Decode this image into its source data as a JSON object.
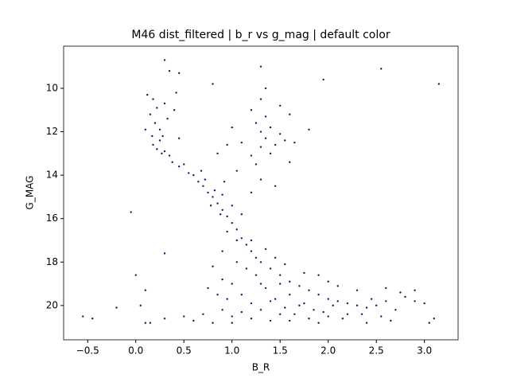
{
  "chart_data": {
    "type": "scatter",
    "title": "M46 dist_filtered | b_r vs g_mag | default color",
    "x_label": "B_R",
    "y_label": "G_MAG",
    "color": "#191970",
    "grid": false,
    "xlim": [
      -0.75,
      3.35
    ],
    "ylim": [
      21.58,
      8.06
    ],
    "xticks": [
      {
        "value": -0.5,
        "label": "−0.5"
      },
      {
        "value": 0,
        "label": "0.0"
      },
      0.5,
      {
        "value": 1,
        "label": "1.0"
      },
      1.5,
      {
        "value": 2,
        "label": "2.0"
      },
      2.5,
      {
        "value": 3,
        "label": "3.0"
      }
    ],
    "yticks": [
      10,
      12,
      14,
      16,
      18,
      20
    ],
    "x": [
      0.12,
      0.18,
      0.22,
      0.15,
      0.2,
      0.1,
      0.17,
      0.25,
      0.22,
      0.3,
      0.35,
      0.28,
      0.33,
      0.4,
      0.45,
      0.38,
      0.45,
      0.5,
      0.55,
      0.6,
      0.25,
      0.3,
      0.42,
      0.18,
      0.27,
      0.65,
      0.7,
      0.75,
      0.8,
      0.72,
      0.85,
      0.9,
      0.82,
      0.95,
      1.0,
      0.9,
      1.05,
      1.1,
      0.88,
      1.0,
      1.15,
      1.2,
      1.05,
      1.25,
      0.95,
      1.1,
      0.78,
      0.68,
      1.3,
      1.2,
      0.92,
      1.3,
      1.4,
      1.5,
      1.6,
      1.7,
      1.8,
      1.9,
      2.0,
      2.1,
      2.2,
      2.3,
      2.4,
      2.5,
      2.6,
      2.7,
      2.8,
      2.2,
      2.0,
      1.8,
      1.6,
      1.4,
      1.2,
      1.0,
      0.9,
      0.85,
      0.9,
      1.0,
      1.1,
      1.2,
      1.3,
      1.35,
      1.45,
      1.55,
      1.65,
      1.75,
      1.85,
      1.95,
      2.05,
      2.15,
      2.35,
      2.45,
      2.55,
      1.25,
      1.15,
      1.05,
      1.5,
      1.6,
      1.4,
      1.3,
      1.7,
      1.9,
      1.5,
      1.1,
      0.95,
      0.7,
      0.6,
      0.5,
      0.8,
      2.3,
      2.6,
      2.75,
      2.9,
      2.1,
      1.9,
      1.75,
      2.0,
      1.45,
      1.55,
      1.35,
      0.8,
      0.9,
      0.75,
      1.2,
      2.65,
      2.4,
      1.0,
      1.2,
      1.25,
      1.3,
      1.35,
      1.4,
      1.45,
      1.5,
      1.55,
      1.3,
      1.2,
      1.25,
      1.4,
      1.6,
      1.65,
      1.3,
      1.35,
      1.5,
      1.1,
      1.05,
      1.45,
      1.8,
      1.6,
      1.35,
      1.0,
      0.95,
      0.85,
      0.3,
      2.55,
      3.15,
      1.95,
      0.8,
      1.3,
      -0.55,
      -0.45,
      -0.2,
      0.0,
      0.05,
      0.1,
      -0.05,
      0.1,
      3.1,
      3.05,
      3.0,
      2.9,
      0.3,
      0.3,
      0.15,
      0.45,
      0.35
    ],
    "values": [
      10.3,
      10.5,
      10.9,
      11.2,
      11.6,
      11.9,
      12.2,
      12.4,
      12.8,
      12.9,
      13.1,
      12.2,
      11.4,
      11.0,
      12.3,
      13.4,
      13.6,
      13.5,
      13.9,
      14.0,
      11.9,
      10.7,
      10.2,
      12.6,
      13.0,
      14.3,
      14.5,
      14.8,
      15.0,
      14.2,
      15.3,
      15.6,
      14.7,
      15.9,
      16.2,
      14.9,
      16.5,
      16.9,
      15.8,
      15.4,
      17.2,
      17.5,
      17.0,
      17.8,
      16.6,
      15.8,
      15.4,
      13.8,
      14.2,
      14.8,
      14.3,
      18.0,
      18.3,
      18.6,
      18.9,
      19.1,
      19.3,
      19.5,
      19.7,
      19.8,
      19.9,
      20.0,
      20.1,
      20.0,
      19.8,
      20.2,
      19.6,
      20.4,
      20.5,
      20.6,
      20.7,
      20.7,
      20.6,
      20.5,
      20.2,
      19.5,
      18.8,
      19.0,
      19.5,
      19.9,
      20.2,
      19.2,
      19.7,
      20.1,
      20.4,
      19.9,
      20.2,
      20.3,
      20.0,
      20.6,
      20.4,
      19.7,
      20.5,
      18.6,
      18.3,
      18.0,
      19.0,
      19.5,
      19.8,
      19.0,
      20.0,
      20.8,
      20.4,
      20.3,
      19.7,
      20.4,
      20.7,
      20.5,
      20.8,
      19.3,
      19.2,
      19.4,
      19.8,
      19.1,
      18.6,
      18.5,
      18.9,
      17.8,
      18.1,
      17.4,
      18.2,
      17.5,
      19.2,
      17.0,
      20.7,
      20.8,
      20.8,
      11.0,
      11.6,
      12.0,
      12.3,
      11.8,
      12.6,
      12.1,
      12.4,
      12.7,
      13.1,
      13.5,
      13.0,
      13.4,
      12.5,
      10.5,
      10.0,
      10.8,
      12.5,
      13.8,
      14.5,
      11.9,
      11.2,
      11.3,
      11.8,
      12.6,
      13.0,
      8.7,
      9.1,
      9.8,
      9.6,
      9.8,
      9.0,
      20.5,
      20.6,
      20.1,
      18.6,
      20.0,
      19.3,
      15.7,
      20.8,
      20.6,
      20.8,
      19.9,
      19.3,
      20.6,
      17.6,
      20.8,
      9.3,
      9.2
    ]
  }
}
